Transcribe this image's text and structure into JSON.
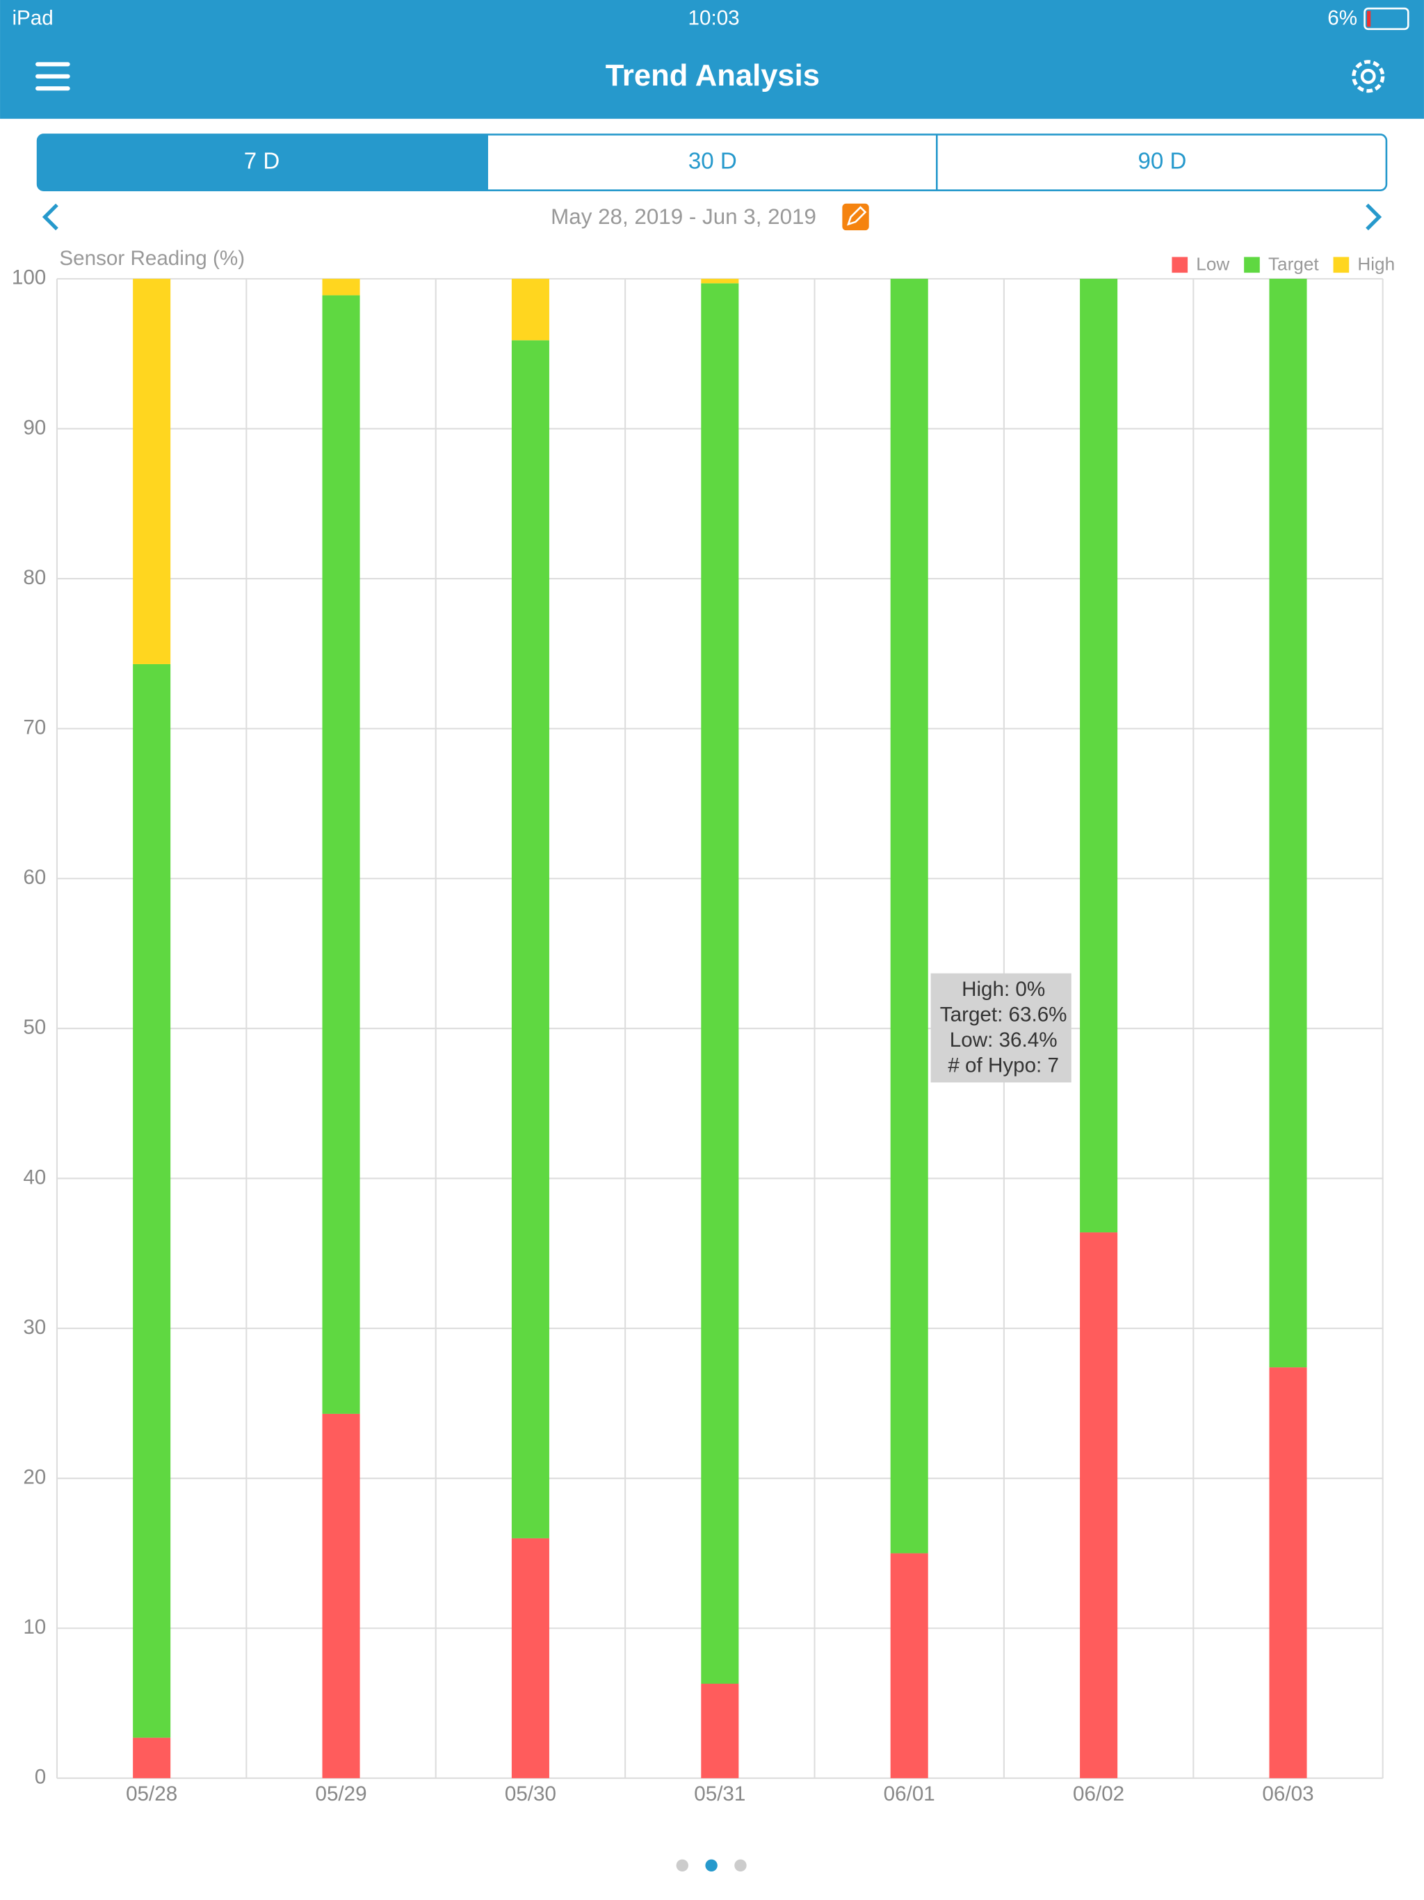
{
  "status_bar": {
    "device": "iPad",
    "time": "10:03",
    "battery": "6%"
  },
  "header": {
    "title": "Trend Analysis"
  },
  "tabs": [
    "7 D",
    "30 D",
    "90 D"
  ],
  "date_range": "May 28, 2019 - Jun 3, 2019",
  "chart_data": {
    "type": "stacked_bar",
    "y_label": "Sensor Reading (%)",
    "categories": [
      "05/28",
      "05/29",
      "05/30",
      "05/31",
      "06/01",
      "06/02",
      "06/03"
    ],
    "series": [
      {
        "name": "Low",
        "color": "#ff5c5c",
        "values": [
          2.7,
          24.3,
          16.0,
          6.3,
          15.0,
          36.4,
          27.4
        ]
      },
      {
        "name": "Target",
        "color": "#5fd841",
        "values": [
          71.6,
          74.6,
          79.9,
          93.4,
          85.0,
          63.6,
          72.6
        ]
      },
      {
        "name": "High",
        "color": "#ffd61f",
        "values": [
          25.7,
          1.1,
          4.1,
          0.3,
          0,
          0,
          0
        ]
      }
    ],
    "ylim": [
      0,
      100
    ],
    "yticks": [
      0,
      10,
      20,
      30,
      40,
      50,
      60,
      70,
      80,
      90,
      100
    ],
    "grid": true,
    "legend": "top-right",
    "tooltip": [
      "High: 0%",
      "Target: 63.6%",
      "Low: 36.4%",
      "# of Hypo: 7"
    ]
  }
}
